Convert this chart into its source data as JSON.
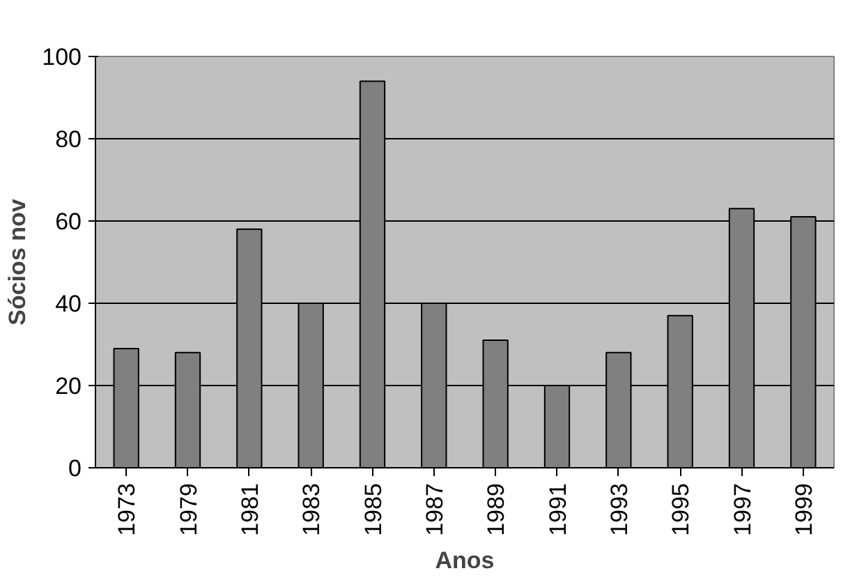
{
  "chart_data": {
    "type": "bar",
    "xlabel": "Anos",
    "ylabel": "Sócios nov",
    "categories": [
      "1973",
      "1979",
      "1981",
      "1983",
      "1985",
      "1987",
      "1989",
      "1991",
      "1993",
      "1995",
      "1997",
      "1999"
    ],
    "values": [
      29,
      28,
      58,
      40,
      94,
      40,
      31,
      20,
      28,
      37,
      63,
      61
    ],
    "color": "#808080",
    "ylim": [
      0,
      100
    ],
    "yticks": [
      0,
      20,
      40,
      60,
      80,
      100
    ],
    "grid": "y"
  }
}
